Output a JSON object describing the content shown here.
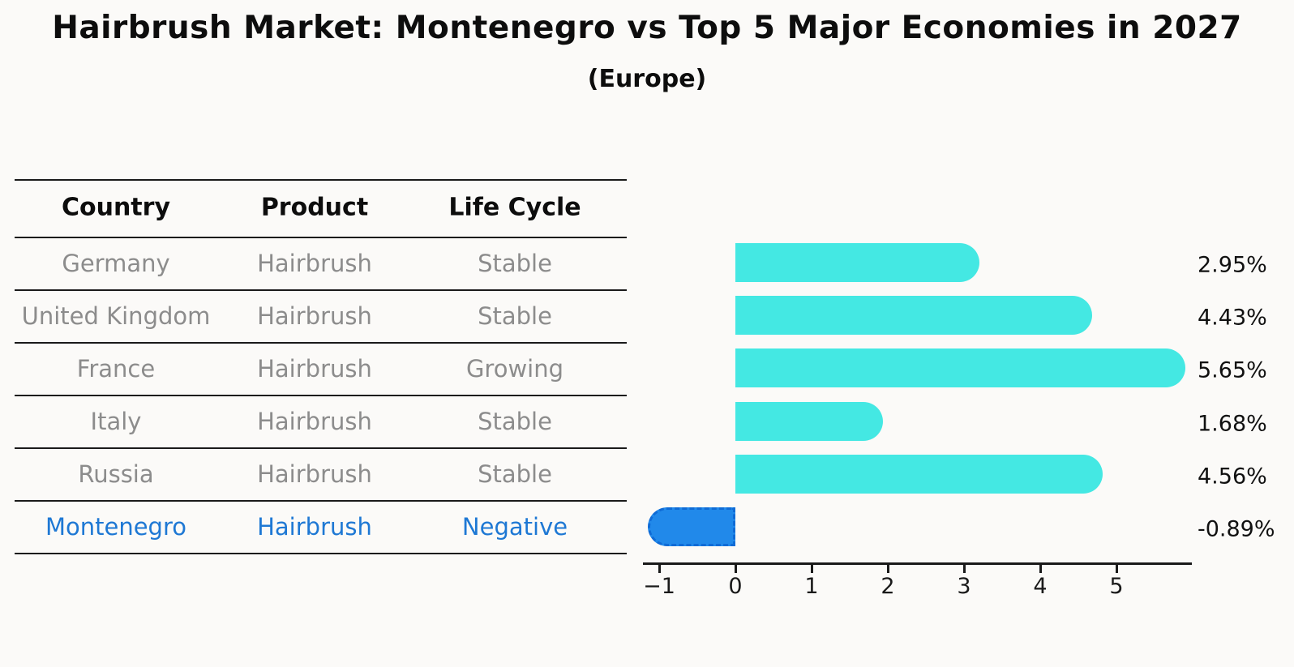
{
  "header": {
    "title": "Hairbrush Market: Montenegro vs Top 5 Major Economies in 2027",
    "subtitle": "(Europe)"
  },
  "table": {
    "columns": [
      "Country",
      "Product",
      "Life Cycle"
    ],
    "rows": [
      {
        "country": "Germany",
        "product": "Hairbrush",
        "life_cycle": "Stable",
        "highlight": false
      },
      {
        "country": "United Kingdom",
        "product": "Hairbrush",
        "life_cycle": "Stable",
        "highlight": false
      },
      {
        "country": "France",
        "product": "Hairbrush",
        "life_cycle": "Growing",
        "highlight": false
      },
      {
        "country": "Italy",
        "product": "Hairbrush",
        "life_cycle": "Stable",
        "highlight": false
      },
      {
        "country": "Russia",
        "product": "Hairbrush",
        "life_cycle": "Stable",
        "highlight": false
      },
      {
        "country": "Montenegro",
        "product": "Hairbrush",
        "life_cycle": "Negative",
        "highlight": true
      }
    ]
  },
  "chart_data": {
    "type": "bar",
    "orientation": "horizontal",
    "title": "",
    "xlabel": "",
    "ylabel": "",
    "categories": [
      "Germany",
      "United Kingdom",
      "France",
      "Italy",
      "Russia",
      "Montenegro"
    ],
    "values": [
      2.95,
      4.43,
      5.65,
      1.68,
      4.56,
      -0.89
    ],
    "value_labels": [
      "2.95%",
      "4.43%",
      "5.65%",
      "1.68%",
      "4.56%",
      "-0.89%"
    ],
    "x_tick_values": [
      -1,
      0,
      1,
      2,
      3,
      4,
      5
    ],
    "x_tick_labels": [
      "−1",
      "0",
      "1",
      "2",
      "3",
      "4",
      "5"
    ],
    "xlim": [
      -1.21,
      6.0
    ],
    "grid": false,
    "legend": false,
    "bar_color": "#44e8e3",
    "highlight_bar_color": "#2189ea",
    "highlight_index": 5
  },
  "colors": {
    "background": "#fbfaf8",
    "table_text": "#8c8c8c",
    "highlight_text": "#1e78d4",
    "axis": "#1a1a1a",
    "bar": "#44e8e3",
    "highlight_bar": "#2189ea"
  }
}
